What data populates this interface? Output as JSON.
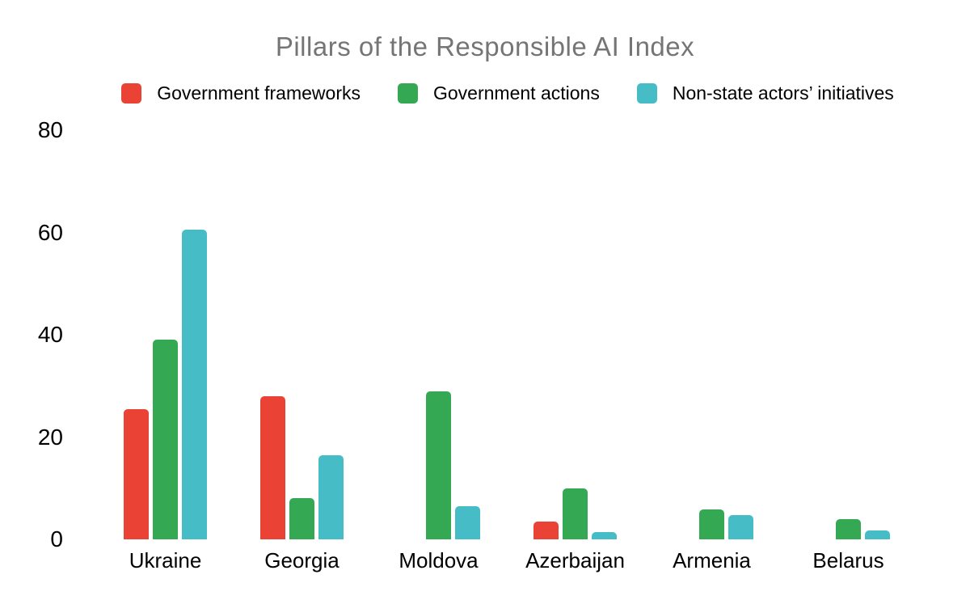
{
  "page": {
    "background_color": "#ffffff"
  },
  "chart_data": {
    "type": "bar",
    "title": "Pillars of the Responsible AI Index",
    "title_color": "#757575",
    "categories": [
      "Ukraine",
      "Georgia",
      "Moldova",
      "Azerbaijan",
      "Armenia",
      "Belarus"
    ],
    "series": [
      {
        "name": "Government frameworks",
        "color": "#EA4335",
        "values": [
          25.5,
          28,
          0,
          3.5,
          0,
          0
        ]
      },
      {
        "name": "Government actions",
        "color": "#34A853",
        "values": [
          39,
          8,
          29,
          10,
          5.8,
          4
        ]
      },
      {
        "name": "Non-state actors’ initiatives",
        "color": "#46BDC6",
        "values": [
          60.5,
          16.5,
          6.5,
          1.5,
          4.7,
          1.7
        ]
      }
    ],
    "y_ticks": [
      0,
      20,
      40,
      60,
      80
    ],
    "ylim": [
      0,
      80
    ],
    "grid": false,
    "axis_line": false,
    "legend_position": "top",
    "axis_text_color": "#000000"
  }
}
